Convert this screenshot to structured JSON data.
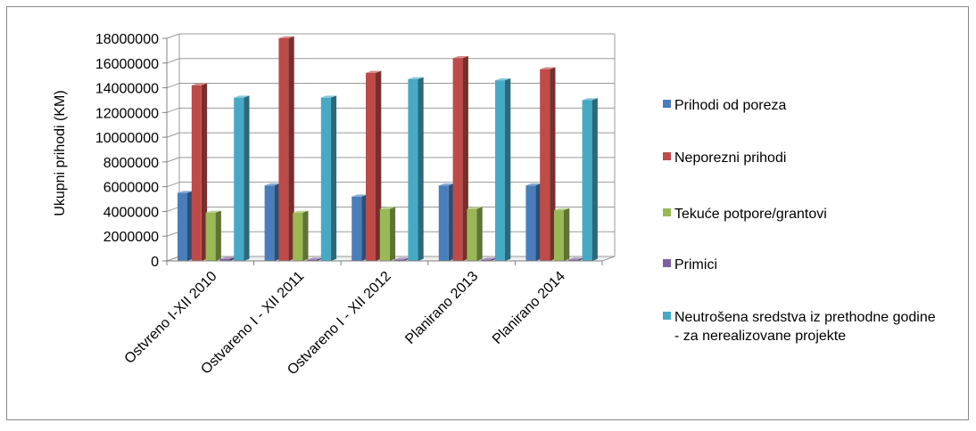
{
  "chart_data": {
    "type": "bar",
    "title": "",
    "ylabel": "Ukupni prihodi (KM)",
    "xlabel": "",
    "ylim": [
      0,
      18000000
    ],
    "yticks": [
      0,
      2000000,
      4000000,
      6000000,
      8000000,
      10000000,
      12000000,
      14000000,
      16000000,
      18000000
    ],
    "ytick_labels": [
      "0",
      "2000000",
      "4000000",
      "6000000",
      "8000000",
      "10000000",
      "12000000",
      "14000000",
      "16000000",
      "18000000"
    ],
    "grid": true,
    "legend_position": "right",
    "categories": [
      "Ostvreno I-XII 2010",
      "Ostvareno I - XII 2011",
      "Ostvareno I - XII 2012",
      "Planirano 2013",
      "Planirano 2014"
    ],
    "series": [
      {
        "name": "Prihodi od poreza",
        "color": "#4a7ebb",
        "values": [
          5500000,
          6100000,
          5200000,
          6100000,
          6100000
        ]
      },
      {
        "name": "Neporezni prihodi",
        "color": "#be4b48",
        "values": [
          14200000,
          18000000,
          15200000,
          16400000,
          15500000
        ]
      },
      {
        "name": "Tekuće potpore/grantovi",
        "color": "#98b954",
        "values": [
          3900000,
          3900000,
          4200000,
          4200000,
          4100000
        ]
      },
      {
        "name": "Primici",
        "color": "#7d5fa0",
        "values": [
          150000,
          100000,
          100000,
          100000,
          100000
        ]
      },
      {
        "name": "Neutrošena sredstva iz prethodne godine - za nerealizovane projekte",
        "color": "#46aac5",
        "values": [
          13200000,
          13200000,
          14700000,
          14600000,
          13000000
        ]
      }
    ]
  }
}
